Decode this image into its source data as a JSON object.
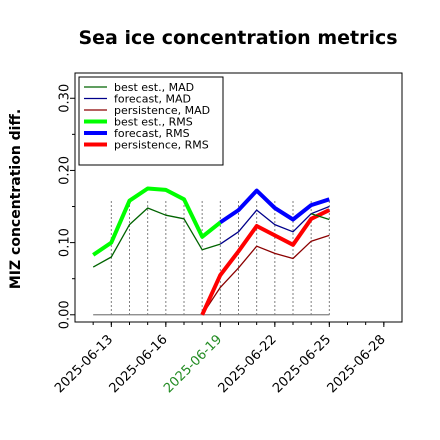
{
  "chart_data": {
    "type": "line",
    "title": "Sea ice concentration metrics",
    "ylabel": "MIZ concentration diff.",
    "xlabel": "",
    "ylim": [
      -0.01,
      0.335
    ],
    "xlim": [
      "2025-06-11",
      "2025-06-29"
    ],
    "grid": false,
    "legend_position": "top-left",
    "y_ticks": [
      "0.00",
      "0.10",
      "0.20",
      "0.30"
    ],
    "y_tick_values": [
      0.0,
      0.1,
      0.2,
      0.3
    ],
    "x_ticks": [
      "2025-06-13",
      "2025-06-16",
      "2025-06-19",
      "2025-06-22",
      "2025-06-25",
      "2025-06-28"
    ],
    "x_tick_colors": [
      "#000000",
      "#000000",
      "#228b22",
      "#000000",
      "#000000",
      "#000000"
    ],
    "baseline": {
      "x": [
        "2025-06-12",
        "2025-06-25"
      ],
      "y": [
        0.0,
        0.0
      ],
      "color": "#808080"
    },
    "vlines": [
      "2025-06-13",
      "2025-06-14",
      "2025-06-15",
      "2025-06-16",
      "2025-06-17",
      "2025-06-18",
      "2025-06-19",
      "2025-06-20",
      "2025-06-21",
      "2025-06-22",
      "2025-06-23",
      "2025-06-24",
      "2025-06-25"
    ],
    "series": [
      {
        "name": "best est., MAD",
        "color": "#006400",
        "width": 1.3,
        "x": [
          "2025-06-12",
          "2025-06-13",
          "2025-06-14",
          "2025-06-15",
          "2025-06-16",
          "2025-06-17",
          "2025-06-18",
          "2025-06-19"
        ],
        "y": [
          0.066,
          0.08,
          0.125,
          0.148,
          0.138,
          0.133,
          0.09,
          0.098
        ]
      },
      {
        "name": "forecast,  MAD",
        "color": "#00008b",
        "width": 1.3,
        "x": [
          "2025-06-19",
          "2025-06-20",
          "2025-06-21",
          "2025-06-22",
          "2025-06-23",
          "2025-06-24",
          "2025-06-25"
        ],
        "y": [
          0.098,
          0.115,
          0.145,
          0.125,
          0.115,
          0.14,
          0.15
        ]
      },
      {
        "name": "persistence, MAD",
        "color": "#8b0000",
        "width": 1.3,
        "x": [
          "2025-06-18",
          "2025-06-19",
          "2025-06-20",
          "2025-06-21",
          "2025-06-22",
          "2025-06-23",
          "2025-06-24",
          "2025-06-25"
        ],
        "y": [
          0.0,
          0.038,
          0.065,
          0.095,
          0.085,
          0.078,
          0.102,
          0.11
        ]
      },
      {
        "name": "best est., RMS",
        "color": "#00ff00",
        "width": 4,
        "x": [
          "2025-06-12",
          "2025-06-13",
          "2025-06-14",
          "2025-06-15",
          "2025-06-16",
          "2025-06-17",
          "2025-06-18",
          "2025-06-19"
        ],
        "y": [
          0.083,
          0.1,
          0.158,
          0.175,
          0.173,
          0.16,
          0.108,
          0.128
        ]
      },
      {
        "name": "forecast,  RMS",
        "color": "#0000ff",
        "width": 4,
        "x": [
          "2025-06-19",
          "2025-06-20",
          "2025-06-21",
          "2025-06-22",
          "2025-06-23",
          "2025-06-24",
          "2025-06-25"
        ],
        "y": [
          0.128,
          0.145,
          0.172,
          0.148,
          0.132,
          0.152,
          0.16
        ]
      },
      {
        "name": "persistence, RMS",
        "color": "#ff0000",
        "width": 4,
        "x": [
          "2025-06-18",
          "2025-06-19",
          "2025-06-20",
          "2025-06-21",
          "2025-06-22",
          "2025-06-23",
          "2025-06-24",
          "2025-06-25"
        ],
        "y": [
          0.0,
          0.055,
          0.088,
          0.123,
          0.11,
          0.097,
          0.133,
          0.145
        ]
      }
    ],
    "overlay": {
      "color": "#006400",
      "width": 1.3,
      "x": [
        "2025-06-24",
        "2025-06-25"
      ],
      "y": [
        0.14,
        0.132
      ]
    }
  }
}
